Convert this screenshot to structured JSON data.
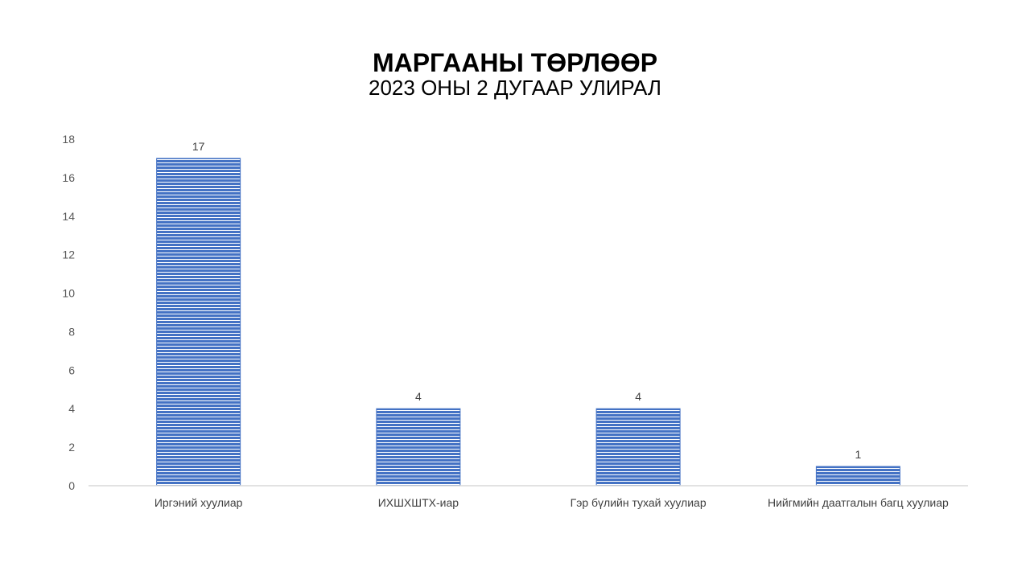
{
  "chart_data": {
    "type": "bar",
    "title": "МАРГААНЫ ТӨРЛӨӨР",
    "subtitle": "2023 ОНЫ 2 ДУГААР УЛИРАЛ",
    "categories": [
      "Иргэний хуулиар",
      "ИХШХШТХ-иар",
      "Гэр бүлийн тухай хуулиар",
      "Нийгмийн даатгалын багц хуулиар"
    ],
    "values": [
      17,
      4,
      4,
      1
    ],
    "ylim": [
      0,
      18
    ],
    "yticks": [
      0,
      2,
      4,
      6,
      8,
      10,
      12,
      14,
      16,
      18
    ],
    "data_labels": true,
    "grid": false,
    "legend": "none",
    "colors": {
      "bar_fill": "#4472c4",
      "bar_stripe": "#ffffff",
      "axis_line": "#d9d9d9"
    }
  }
}
